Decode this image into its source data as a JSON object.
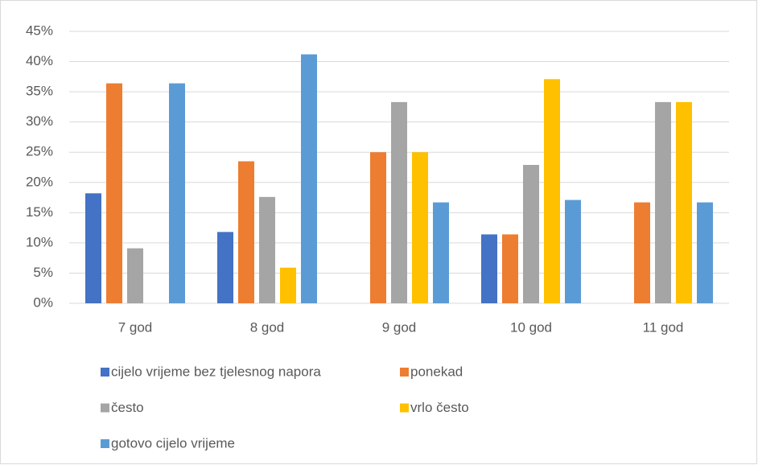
{
  "chart_data": {
    "type": "bar",
    "categories": [
      "7 god",
      "8 god",
      "9 god",
      "10 god",
      "11 god"
    ],
    "series": [
      {
        "name": "cijelo vrijeme bez tjelesnog napora",
        "color": "#4472c4",
        "values": [
          18.2,
          11.8,
          0,
          11.4,
          0
        ]
      },
      {
        "name": "ponekad",
        "color": "#ed7d31",
        "values": [
          36.4,
          23.5,
          25,
          11.4,
          16.7
        ]
      },
      {
        "name": "često",
        "color": "#a5a5a5",
        "values": [
          9.1,
          17.6,
          33.3,
          22.9,
          33.3
        ]
      },
      {
        "name": "vrlo često",
        "color": "#ffc000",
        "values": [
          0,
          5.9,
          25,
          37.1,
          33.3
        ]
      },
      {
        "name": "gotovo cijelo vrijeme",
        "color": "#5b9bd5",
        "values": [
          36.4,
          41.2,
          16.7,
          17.1,
          16.7
        ]
      }
    ],
    "ylim": [
      0,
      45
    ],
    "yticks": [
      {
        "value": 0,
        "label": "0%"
      },
      {
        "value": 5,
        "label": "5%"
      },
      {
        "value": 10,
        "label": "10%"
      },
      {
        "value": 15,
        "label": "15%"
      },
      {
        "value": 20,
        "label": "20%"
      },
      {
        "value": 25,
        "label": "25%"
      },
      {
        "value": 30,
        "label": "30%"
      },
      {
        "value": 35,
        "label": "35%"
      },
      {
        "value": 40,
        "label": "40%"
      },
      {
        "value": 45,
        "label": "45%"
      }
    ],
    "grid": true,
    "legend": "bottom"
  }
}
